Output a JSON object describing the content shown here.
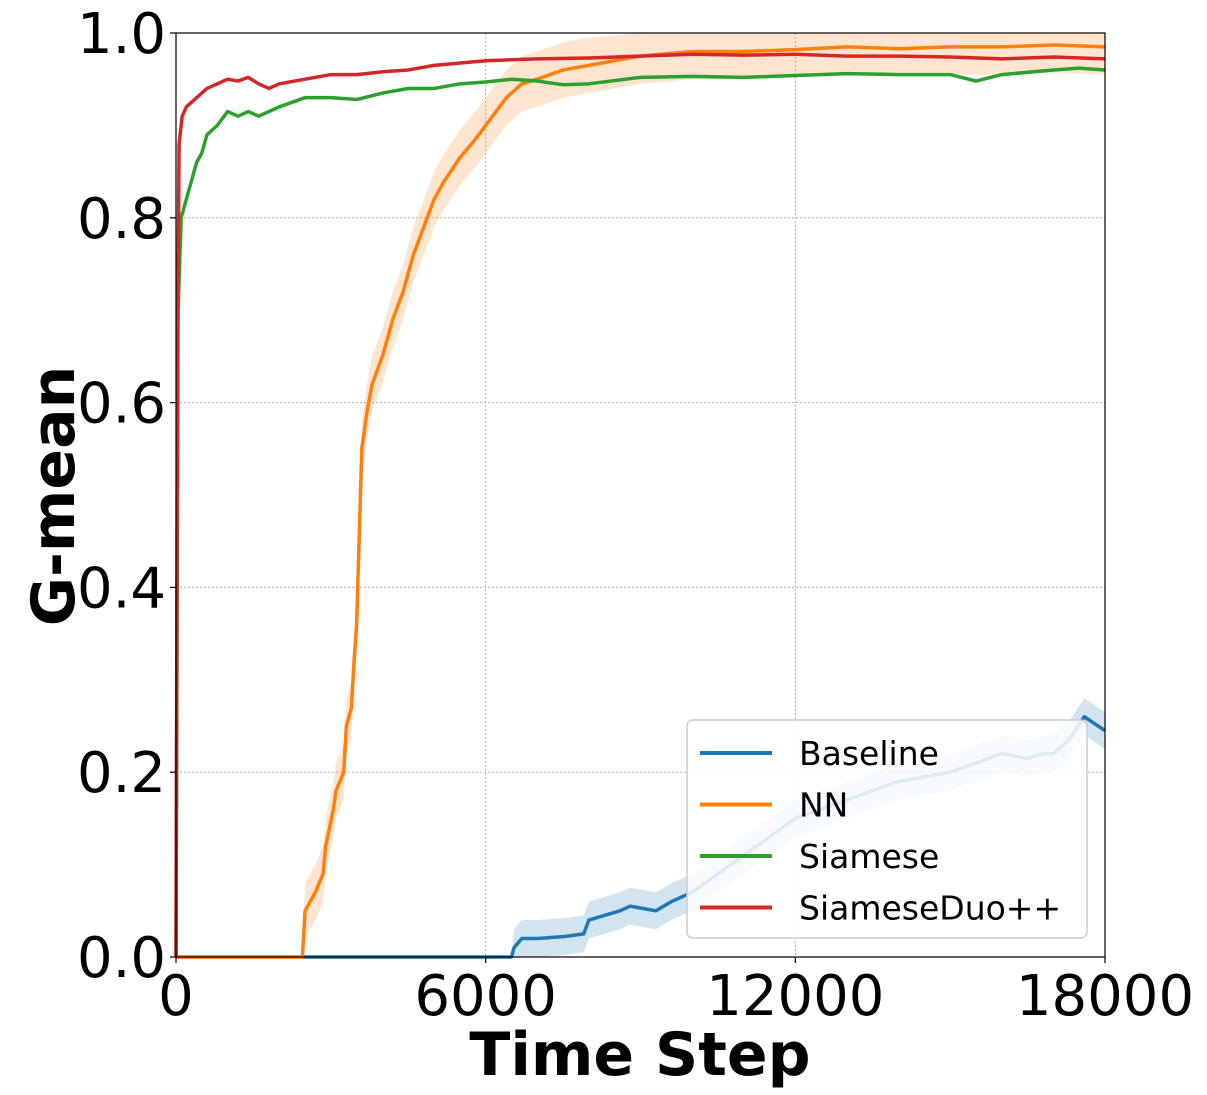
{
  "chart_data": {
    "type": "line",
    "title": "",
    "xlabel": "Time Step",
    "ylabel": "G-mean",
    "xlim": [
      0,
      18000
    ],
    "ylim": [
      0,
      1.0
    ],
    "xticks": [
      0,
      6000,
      12000,
      18000
    ],
    "xtick_labels": [
      "0",
      "6000",
      "12000",
      "18000"
    ],
    "yticks": [
      0.0,
      0.2,
      0.4,
      0.6,
      0.8,
      1.0
    ],
    "ytick_labels": [
      "0.0",
      "0.2",
      "0.4",
      "0.6",
      "0.8",
      "1.0"
    ],
    "grid": true,
    "legend_position": "lower-right",
    "series": [
      {
        "name": "Baseline",
        "color": "#1f77b4",
        "band_halfwidth": 0.02,
        "x": [
          0,
          6500,
          6550,
          6700,
          7000,
          7500,
          7900,
          8000,
          8600,
          8800,
          9300,
          9600,
          10000,
          10500,
          11000,
          11500,
          12000,
          12500,
          13000,
          13500,
          14000,
          14500,
          15000,
          15500,
          16000,
          16500,
          16800,
          17000,
          17300,
          17600,
          18000
        ],
        "y": [
          0,
          0,
          0.01,
          0.02,
          0.02,
          0.022,
          0.025,
          0.04,
          0.05,
          0.055,
          0.05,
          0.06,
          0.07,
          0.09,
          0.11,
          0.13,
          0.15,
          0.16,
          0.17,
          0.18,
          0.19,
          0.195,
          0.2,
          0.21,
          0.22,
          0.215,
          0.22,
          0.22,
          0.235,
          0.26,
          0.245
        ]
      },
      {
        "name": "NN",
        "color": "#ff7f0e",
        "band_halfwidth": 0.03,
        "x": [
          0,
          2450,
          2500,
          2700,
          2850,
          2900,
          3050,
          3100,
          3250,
          3300,
          3400,
          3450,
          3500,
          3600,
          3700,
          3800,
          4000,
          4200,
          4400,
          4600,
          4800,
          5000,
          5200,
          5500,
          5800,
          6000,
          6200,
          6400,
          6700,
          7000,
          7500,
          8000,
          9000,
          10000,
          11000,
          12000,
          13000,
          14000,
          15000,
          16000,
          17000,
          18000
        ],
        "y": [
          0,
          0,
          0.05,
          0.07,
          0.09,
          0.12,
          0.16,
          0.18,
          0.2,
          0.25,
          0.27,
          0.32,
          0.36,
          0.55,
          0.59,
          0.62,
          0.65,
          0.69,
          0.72,
          0.76,
          0.79,
          0.82,
          0.84,
          0.865,
          0.885,
          0.9,
          0.915,
          0.93,
          0.945,
          0.95,
          0.96,
          0.965,
          0.975,
          0.98,
          0.98,
          0.982,
          0.985,
          0.983,
          0.985,
          0.985,
          0.987,
          0.985
        ]
      },
      {
        "name": "Siamese",
        "color": "#2ca02c",
        "band_halfwidth": 0.0,
        "x": [
          0,
          40,
          100,
          200,
          300,
          400,
          500,
          600,
          800,
          1000,
          1200,
          1400,
          1600,
          1800,
          2000,
          2500,
          3000,
          3500,
          4000,
          4500,
          5000,
          5500,
          6000,
          6500,
          7000,
          7500,
          8000,
          9000,
          10000,
          11000,
          12000,
          13000,
          14000,
          15000,
          15500,
          16000,
          17000,
          17500,
          18000
        ],
        "y": [
          0,
          0.7,
          0.8,
          0.82,
          0.84,
          0.86,
          0.87,
          0.89,
          0.9,
          0.915,
          0.91,
          0.915,
          0.91,
          0.915,
          0.92,
          0.93,
          0.93,
          0.928,
          0.935,
          0.94,
          0.94,
          0.945,
          0.947,
          0.95,
          0.948,
          0.944,
          0.945,
          0.952,
          0.953,
          0.952,
          0.954,
          0.956,
          0.955,
          0.955,
          0.948,
          0.955,
          0.96,
          0.962,
          0.96
        ]
      },
      {
        "name": "SiameseDuo++",
        "color": "#d62728",
        "band_halfwidth": 0.0,
        "x": [
          0,
          30,
          60,
          120,
          200,
          300,
          400,
          500,
          600,
          800,
          1000,
          1200,
          1400,
          1600,
          1800,
          2000,
          2500,
          3000,
          3500,
          4000,
          4500,
          5000,
          6000,
          7000,
          8000,
          9000,
          10000,
          11000,
          12000,
          13000,
          14000,
          15000,
          16000,
          17000,
          18000
        ],
        "y": [
          0,
          0.65,
          0.88,
          0.91,
          0.92,
          0.925,
          0.93,
          0.935,
          0.94,
          0.945,
          0.95,
          0.948,
          0.952,
          0.945,
          0.94,
          0.945,
          0.95,
          0.955,
          0.955,
          0.958,
          0.96,
          0.965,
          0.97,
          0.972,
          0.973,
          0.975,
          0.977,
          0.976,
          0.977,
          0.975,
          0.975,
          0.974,
          0.972,
          0.974,
          0.972
        ]
      }
    ]
  }
}
